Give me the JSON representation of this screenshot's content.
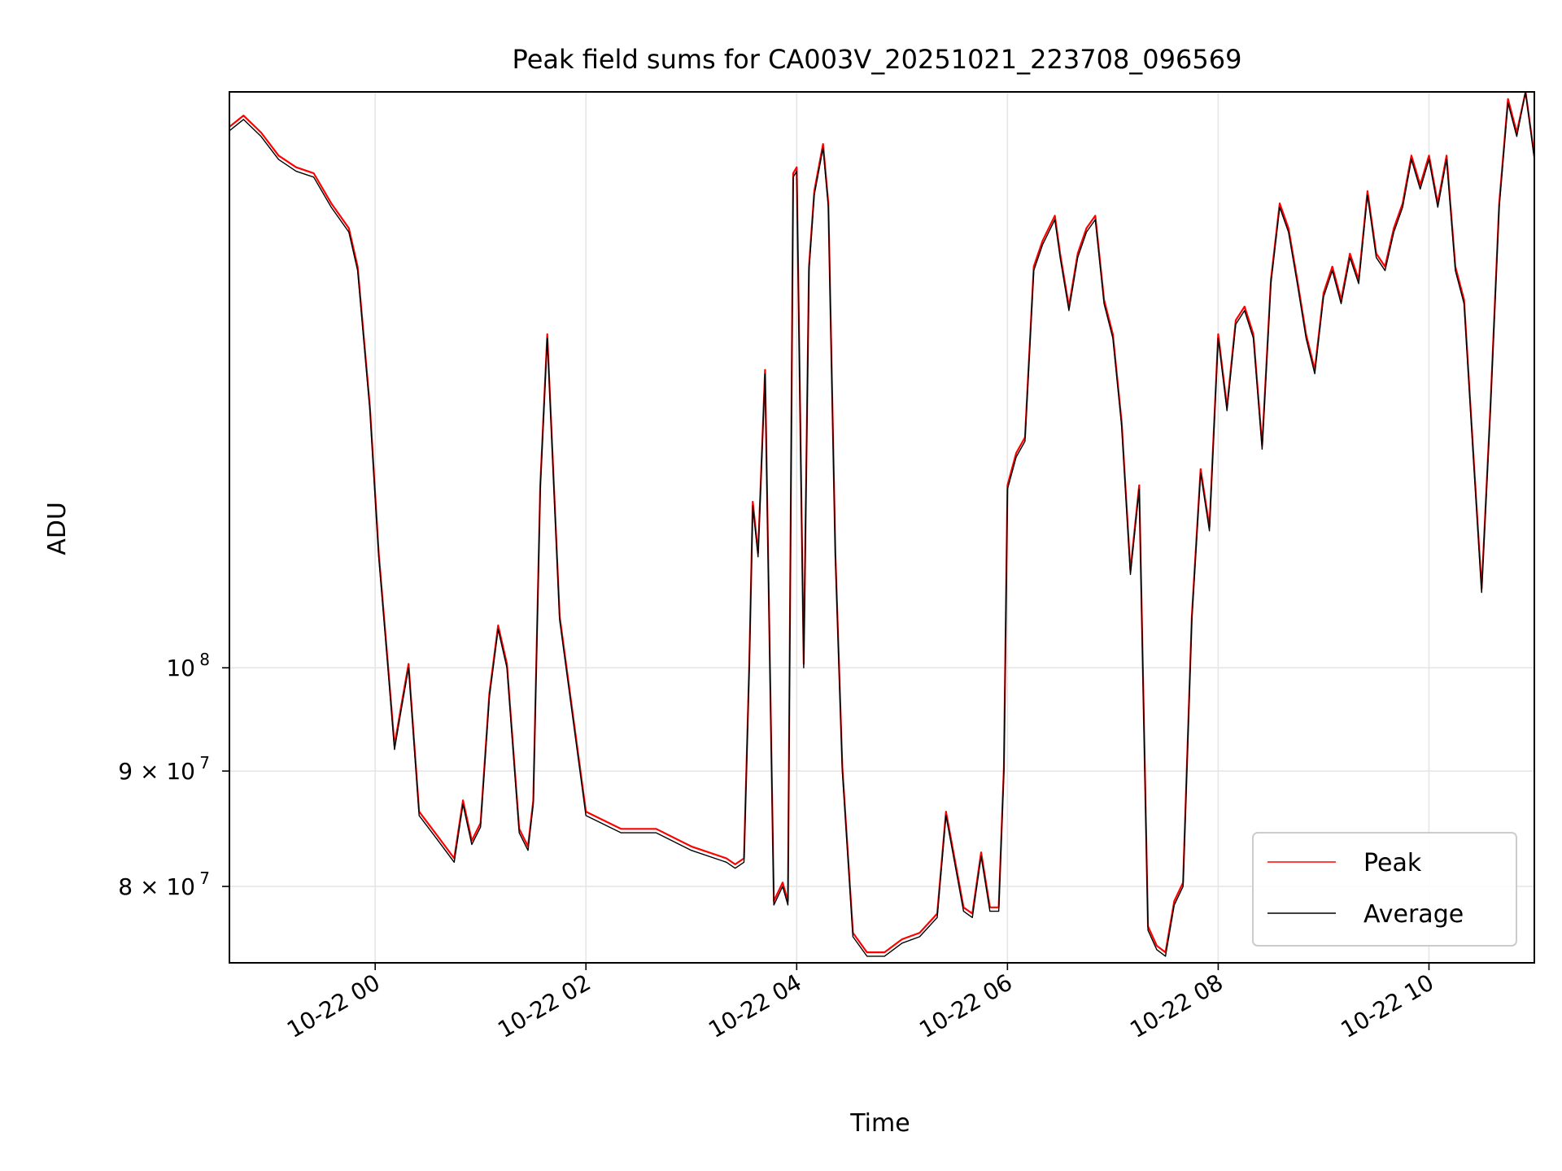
{
  "chart_data": {
    "type": "line",
    "title": "Peak field sums for CA003V_20251021_223708_096569",
    "xlabel": "Time",
    "ylabel": "ADU",
    "y_scale": "log",
    "grid": true,
    "legend_position": "lower-right",
    "x_range": [
      "2025-10-21 22:37",
      "2025-10-22 11:00"
    ],
    "ylim": [
      74000000,
      180000000
    ],
    "x_ticks": [
      {
        "label": "10-22 00",
        "value": "2025-10-22 00:00"
      },
      {
        "label": "10-22 02",
        "value": "2025-10-22 02:00"
      },
      {
        "label": "10-22 04",
        "value": "2025-10-22 04:00"
      },
      {
        "label": "10-22 06",
        "value": "2025-10-22 06:00"
      },
      {
        "label": "10-22 08",
        "value": "2025-10-22 08:00"
      },
      {
        "label": "10-22 10",
        "value": "2025-10-22 10:00"
      }
    ],
    "y_ticks": [
      {
        "label": "10",
        "exponent": "8",
        "value": 100000000
      },
      {
        "label": "9 × 10",
        "exponent": "7",
        "value": 90000000
      },
      {
        "label": "8 × 10",
        "exponent": "7",
        "value": 80000000
      }
    ],
    "series": [
      {
        "name": "Peak",
        "color": "#ff0000",
        "offset_ratio": 1.004
      },
      {
        "name": "Average",
        "color": "#000000",
        "offset_ratio": 1.0
      }
    ],
    "x": [
      "2025-10-21 22:37",
      "2025-10-21 22:45",
      "2025-10-21 22:55",
      "2025-10-21 23:05",
      "2025-10-21 23:15",
      "2025-10-21 23:25",
      "2025-10-21 23:35",
      "2025-10-21 23:45",
      "2025-10-21 23:50",
      "2025-10-21 23:57",
      "2025-10-22 00:02",
      "2025-10-22 00:07",
      "2025-10-22 00:11",
      "2025-10-22 00:15",
      "2025-10-22 00:19",
      "2025-10-22 00:25",
      "2025-10-22 00:35",
      "2025-10-22 00:45",
      "2025-10-22 00:50",
      "2025-10-22 00:55",
      "2025-10-22 01:00",
      "2025-10-22 01:05",
      "2025-10-22 01:10",
      "2025-10-22 01:15",
      "2025-10-22 01:22",
      "2025-10-22 01:27",
      "2025-10-22 01:30",
      "2025-10-22 01:34",
      "2025-10-22 01:38",
      "2025-10-22 01:45",
      "2025-10-22 02:00",
      "2025-10-22 02:20",
      "2025-10-22 02:40",
      "2025-10-22 03:00",
      "2025-10-22 03:20",
      "2025-10-22 03:25",
      "2025-10-22 03:30",
      "2025-10-22 03:33",
      "2025-10-22 03:35",
      "2025-10-22 03:38",
      "2025-10-22 03:42",
      "2025-10-22 03:47",
      "2025-10-22 03:52",
      "2025-10-22 03:55",
      "2025-10-22 03:58",
      "2025-10-22 04:00",
      "2025-10-22 04:04",
      "2025-10-22 04:07",
      "2025-10-22 04:10",
      "2025-10-22 04:15",
      "2025-10-22 04:18",
      "2025-10-22 04:22",
      "2025-10-22 04:26",
      "2025-10-22 04:32",
      "2025-10-22 04:40",
      "2025-10-22 04:50",
      "2025-10-22 05:00",
      "2025-10-22 05:10",
      "2025-10-22 05:20",
      "2025-10-22 05:25",
      "2025-10-22 05:35",
      "2025-10-22 05:40",
      "2025-10-22 05:45",
      "2025-10-22 05:50",
      "2025-10-22 05:55",
      "2025-10-22 05:58",
      "2025-10-22 06:00",
      "2025-10-22 06:05",
      "2025-10-22 06:10",
      "2025-10-22 06:15",
      "2025-10-22 06:20",
      "2025-10-22 06:27",
      "2025-10-22 06:30",
      "2025-10-22 06:35",
      "2025-10-22 06:40",
      "2025-10-22 06:45",
      "2025-10-22 06:50",
      "2025-10-22 06:55",
      "2025-10-22 07:00",
      "2025-10-22 07:05",
      "2025-10-22 07:10",
      "2025-10-22 07:15",
      "2025-10-22 07:20",
      "2025-10-22 07:25",
      "2025-10-22 07:30",
      "2025-10-22 07:35",
      "2025-10-22 07:40",
      "2025-10-22 07:45",
      "2025-10-22 07:50",
      "2025-10-22 07:55",
      "2025-10-22 08:00",
      "2025-10-22 08:05",
      "2025-10-22 08:10",
      "2025-10-22 08:15",
      "2025-10-22 08:20",
      "2025-10-22 08:25",
      "2025-10-22 08:30",
      "2025-10-22 08:35",
      "2025-10-22 08:40",
      "2025-10-22 08:45",
      "2025-10-22 08:50",
      "2025-10-22 08:55",
      "2025-10-22 09:00",
      "2025-10-22 09:05",
      "2025-10-22 09:10",
      "2025-10-22 09:15",
      "2025-10-22 09:20",
      "2025-10-22 09:25",
      "2025-10-22 09:30",
      "2025-10-22 09:35",
      "2025-10-22 09:40",
      "2025-10-22 09:45",
      "2025-10-22 09:50",
      "2025-10-22 09:55",
      "2025-10-22 10:00",
      "2025-10-22 10:05",
      "2025-10-22 10:10",
      "2025-10-22 10:15",
      "2025-10-22 10:20",
      "2025-10-22 10:25",
      "2025-10-22 10:30",
      "2025-10-22 10:35",
      "2025-10-22 10:40",
      "2025-10-22 10:45",
      "2025-10-22 10:50",
      "2025-10-22 10:55",
      "2025-10-22 11:00"
    ],
    "values": [
      173000000,
      175000000,
      172000000,
      168000000,
      166000000,
      165000000,
      160000000,
      156000000,
      150000000,
      130000000,
      112000000,
      100500000,
      92000000,
      96000000,
      100000000,
      86000000,
      84000000,
      82000000,
      87000000,
      83500000,
      85000000,
      97000000,
      104000000,
      100000000,
      84500000,
      83000000,
      87000000,
      120000000,
      140000000,
      105000000,
      86000000,
      84500000,
      84500000,
      83000000,
      82000000,
      81500000,
      82000000,
      100000000,
      118000000,
      112000000,
      135000000,
      78500000,
      80000000,
      78500000,
      165000000,
      166000000,
      100000000,
      150000000,
      162000000,
      170000000,
      160000000,
      112000000,
      90000000,
      76000000,
      74500000,
      74500000,
      75500000,
      76000000,
      77500000,
      86000000,
      78000000,
      77500000,
      82500000,
      78000000,
      78000000,
      90000000,
      120000000,
      124000000,
      126000000,
      150000000,
      154000000,
      158000000,
      152000000,
      144000000,
      152000000,
      156000000,
      158000000,
      145000000,
      140000000,
      128000000,
      110000000,
      120000000,
      76500000,
      75000000,
      74500000,
      78500000,
      80000000,
      105000000,
      122000000,
      115000000,
      140000000,
      130000000,
      142000000,
      144000000,
      140000000,
      125000000,
      148000000,
      160000000,
      156000000,
      148000000,
      140000000,
      135000000,
      146000000,
      150000000,
      145000000,
      152000000,
      148000000,
      162000000,
      152000000,
      150000000,
      156000000,
      160000000,
      168000000,
      163000000,
      168000000,
      160000000,
      168000000,
      150000000,
      145000000,
      125000000,
      108000000,
      130000000,
      160000000,
      178000000,
      172000000,
      180000000,
      168000000
    ]
  }
}
